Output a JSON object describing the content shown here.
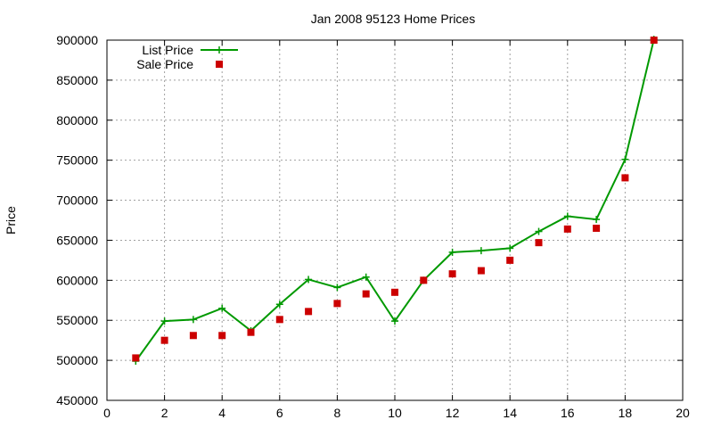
{
  "chart_data": {
    "type": "line",
    "title": "Jan 2008 95123 Home Prices",
    "xlabel": "",
    "ylabel": "Price",
    "xlim": [
      0,
      20
    ],
    "ylim": [
      450000,
      900000
    ],
    "x_ticks": [
      "0",
      "2",
      "4",
      "6",
      "8",
      "10",
      "12",
      "14",
      "16",
      "18",
      "20"
    ],
    "y_ticks": [
      "450000",
      "500000",
      "550000",
      "600000",
      "650000",
      "700000",
      "750000",
      "800000",
      "850000",
      "900000"
    ],
    "grid": true,
    "legend_position": "top-left",
    "x": [
      1,
      2,
      3,
      4,
      5,
      6,
      7,
      8,
      9,
      10,
      11,
      12,
      13,
      14,
      15,
      16,
      17,
      18,
      19
    ],
    "series": [
      {
        "name": "List Price",
        "style": "linespoints",
        "color": "#009900",
        "values": [
          499000,
          549000,
          551000,
          565000,
          537000,
          570000,
          601000,
          591000,
          604000,
          549000,
          600000,
          635000,
          637000,
          640000,
          661000,
          680000,
          676000,
          751000,
          901000
        ]
      },
      {
        "name": "Sale Price",
        "style": "points",
        "color": "#cc0000",
        "values": [
          503000,
          525000,
          531000,
          531000,
          535000,
          551000,
          561000,
          571000,
          583000,
          585000,
          600000,
          608000,
          612000,
          625000,
          647000,
          664000,
          665000,
          728000,
          900000
        ]
      }
    ]
  }
}
